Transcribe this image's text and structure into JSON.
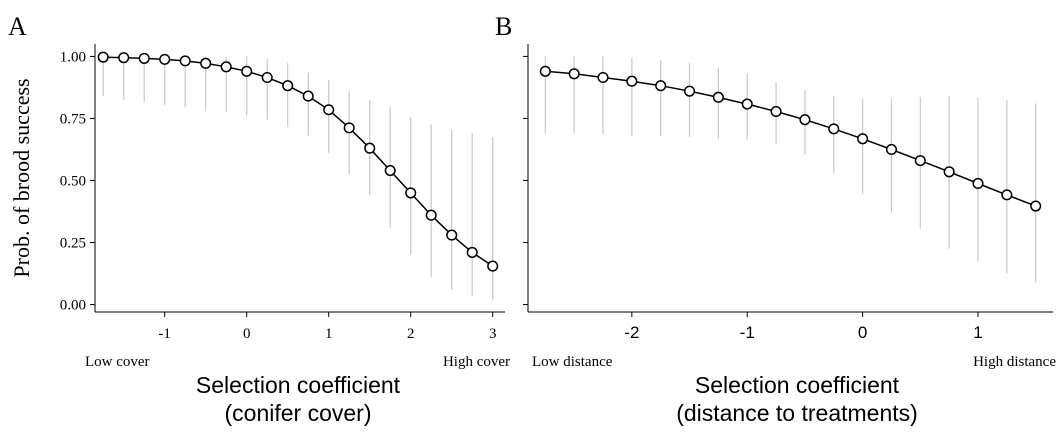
{
  "chart_data": [
    {
      "panel_label": "A",
      "type": "line",
      "ylabel": "Prob. of brood success",
      "xlabel_line1": "Selection coefficient",
      "xlabel_line2": "(conifer cover)",
      "x_low_label": "Low cover",
      "x_high_label": "High cover",
      "xlim": [
        -1.85,
        3.15
      ],
      "ylim": [
        -0.03,
        1.05
      ],
      "x_ticks": [
        -1,
        0,
        1,
        2,
        3
      ],
      "x_tick_labels": [
        "-1",
        "0",
        "1",
        "2",
        "3"
      ],
      "y_ticks": [
        0,
        0.25,
        0.5,
        0.75,
        1.0
      ],
      "y_tick_labels": [
        "0.00",
        "0.25",
        "0.50",
        "0.75",
        "1.00"
      ],
      "grid": false,
      "series": [
        {
          "x": [
            -1.75,
            -1.5,
            -1.25,
            -1.0,
            -0.75,
            -0.5,
            -0.25,
            0.0,
            0.25,
            0.5,
            0.75,
            1.0,
            1.25,
            1.5,
            1.75,
            2.0,
            2.25,
            2.5,
            2.75,
            3.0
          ],
          "y": [
            0.997,
            0.995,
            0.992,
            0.988,
            0.982,
            0.972,
            0.958,
            0.94,
            0.915,
            0.882,
            0.84,
            0.785,
            0.712,
            0.63,
            0.54,
            0.45,
            0.36,
            0.28,
            0.21,
            0.155
          ],
          "lower": [
            0.84,
            0.825,
            0.815,
            0.805,
            0.795,
            0.785,
            0.775,
            0.762,
            0.745,
            0.715,
            0.68,
            0.61,
            0.525,
            0.44,
            0.31,
            0.2,
            0.11,
            0.06,
            0.035,
            0.02
          ],
          "upper": [
            1.0,
            1.0,
            1.0,
            1.0,
            1.0,
            1.0,
            1.0,
            1.0,
            0.99,
            0.975,
            0.935,
            0.905,
            0.86,
            0.825,
            0.795,
            0.755,
            0.725,
            0.705,
            0.69,
            0.675
          ]
        }
      ]
    },
    {
      "panel_label": "B",
      "type": "line",
      "ylabel": "",
      "xlabel_line1": "Selection coefficient",
      "xlabel_line2": "(distance to treatments)",
      "x_low_label": "Low distance",
      "x_high_label": "High distance",
      "xlim": [
        -2.9,
        1.65
      ],
      "ylim": [
        -0.03,
        1.05
      ],
      "x_ticks": [
        -2,
        -1,
        0,
        1
      ],
      "x_tick_labels": [
        "-2",
        "-1",
        "0",
        "1"
      ],
      "y_ticks": [
        0,
        0.25,
        0.5,
        0.75,
        1.0
      ],
      "y_tick_labels": [],
      "grid": false,
      "series": [
        {
          "x": [
            -2.75,
            -2.5,
            -2.25,
            -2.0,
            -1.75,
            -1.5,
            -1.25,
            -1.0,
            -0.75,
            -0.5,
            -0.25,
            0.0,
            0.25,
            0.5,
            0.75,
            1.0,
            1.25,
            1.5
          ],
          "y": [
            0.94,
            0.93,
            0.915,
            0.9,
            0.882,
            0.86,
            0.835,
            0.808,
            0.778,
            0.745,
            0.708,
            0.668,
            0.625,
            0.58,
            0.535,
            0.488,
            0.442,
            0.397
          ],
          "lower": [
            0.69,
            0.69,
            0.685,
            0.68,
            0.68,
            0.675,
            0.67,
            0.665,
            0.645,
            0.605,
            0.53,
            0.445,
            0.37,
            0.305,
            0.225,
            0.175,
            0.125,
            0.09
          ],
          "upper": [
            1.0,
            1.0,
            1.0,
            0.995,
            0.985,
            0.975,
            0.955,
            0.93,
            0.895,
            0.865,
            0.84,
            0.83,
            0.83,
            0.835,
            0.84,
            0.835,
            0.825,
            0.81
          ]
        }
      ]
    }
  ]
}
